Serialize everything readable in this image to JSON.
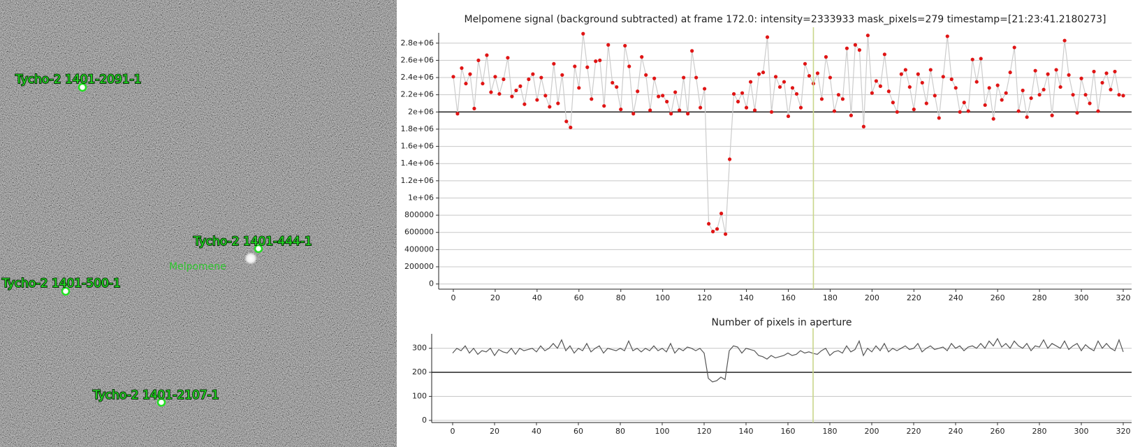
{
  "image_panel": {
    "labels": [
      "Tycho-2 1401-2091-1",
      "Tycho-2 1401-444-1",
      "Melpomene",
      "Tycho-2 1401-500-1",
      "Tycho-2 1401-2107-1"
    ]
  },
  "chart_data": [
    {
      "type": "line",
      "title": "Melpomene signal (background subtracted) at frame 172.0: intensity=2333933 mask_pixels=279 timestamp=[21:23:41.2180273]",
      "color": "#cccccc",
      "marker_color": "#e01515",
      "hline": 2000000,
      "vline": 172,
      "vline_color": "#c9d68a",
      "grid": true,
      "xlim": [
        -7,
        324
      ],
      "xticks": [
        0,
        20,
        40,
        60,
        80,
        100,
        120,
        140,
        160,
        180,
        200,
        220,
        240,
        260,
        280,
        300,
        320
      ],
      "ylim": [
        -60000,
        2920000
      ],
      "yticks": [
        0,
        200000,
        400000,
        600000,
        800000,
        {
          "value": 1000000,
          "label": "1e+06"
        },
        {
          "value": 1200000,
          "label": "1.2e+06"
        },
        {
          "value": 1400000,
          "label": "1.4e+06"
        },
        {
          "value": 1600000,
          "label": "1.6e+06"
        },
        {
          "value": 1800000,
          "label": "1.8e+06"
        },
        {
          "value": 2000000,
          "label": "2e+06"
        },
        {
          "value": 2200000,
          "label": "2.2e+06"
        },
        {
          "value": 2400000,
          "label": "2.4e+06"
        },
        {
          "value": 2600000,
          "label": "2.6e+06"
        },
        {
          "value": 2800000,
          "label": "2.8e+06"
        }
      ],
      "x": [
        0,
        2,
        4,
        6,
        8,
        10,
        12,
        14,
        16,
        18,
        20,
        22,
        24,
        26,
        28,
        30,
        32,
        34,
        36,
        38,
        40,
        42,
        44,
        46,
        48,
        50,
        52,
        54,
        56,
        58,
        60,
        62,
        64,
        66,
        68,
        70,
        72,
        74,
        76,
        78,
        80,
        82,
        84,
        86,
        88,
        90,
        92,
        94,
        96,
        98,
        100,
        102,
        104,
        106,
        108,
        110,
        112,
        114,
        116,
        118,
        120,
        122,
        124,
        126,
        128,
        130,
        132,
        134,
        136,
        138,
        140,
        142,
        144,
        146,
        148,
        150,
        152,
        154,
        156,
        158,
        160,
        162,
        164,
        166,
        168,
        170,
        172,
        174,
        176,
        178,
        180,
        182,
        184,
        186,
        188,
        190,
        192,
        194,
        196,
        198,
        200,
        202,
        204,
        206,
        208,
        210,
        212,
        214,
        216,
        218,
        220,
        222,
        224,
        226,
        228,
        230,
        232,
        234,
        236,
        238,
        240,
        242,
        244,
        246,
        248,
        250,
        252,
        254,
        256,
        258,
        260,
        262,
        264,
        266,
        268,
        270,
        272,
        274,
        276,
        278,
        280,
        282,
        284,
        286,
        288,
        290,
        292,
        294,
        296,
        298,
        300,
        302,
        304,
        306,
        308,
        310,
        312,
        314,
        316,
        318,
        320
      ],
      "values": [
        2410000,
        1980000,
        2510000,
        2330000,
        2440000,
        2040000,
        2600000,
        2330000,
        2660000,
        2230000,
        2410000,
        2210000,
        2380000,
        2630000,
        2180000,
        2250000,
        2300000,
        2090000,
        2380000,
        2440000,
        2140000,
        2400000,
        2190000,
        2060000,
        2560000,
        2100000,
        2430000,
        1890000,
        1820000,
        2530000,
        2280000,
        2910000,
        2520000,
        2150000,
        2590000,
        2600000,
        2070000,
        2780000,
        2340000,
        2290000,
        2030000,
        2770000,
        2530000,
        1980000,
        2240000,
        2640000,
        2430000,
        2020000,
        2390000,
        2180000,
        2190000,
        2120000,
        1980000,
        2230000,
        2020000,
        2400000,
        1980000,
        2710000,
        2400000,
        2050000,
        2270000,
        700000,
        610000,
        640000,
        820000,
        580000,
        1450000,
        2210000,
        2120000,
        2220000,
        2050000,
        2350000,
        2020000,
        2440000,
        2460000,
        2870000,
        2000000,
        2410000,
        2290000,
        2350000,
        1950000,
        2280000,
        2210000,
        2050000,
        2560000,
        2420000,
        2330000,
        2450000,
        2150000,
        2640000,
        2400000,
        2010000,
        2200000,
        2150000,
        2740000,
        1960000,
        2780000,
        2720000,
        1830000,
        2890000,
        2220000,
        2360000,
        2300000,
        2670000,
        2240000,
        2110000,
        2000000,
        2440000,
        2490000,
        2290000,
        2030000,
        2440000,
        2340000,
        2100000,
        2490000,
        2190000,
        1930000,
        2410000,
        2880000,
        2380000,
        2280000,
        2000000,
        2110000,
        2010000,
        2610000,
        2350000,
        2620000,
        2080000,
        2280000,
        1920000,
        2310000,
        2140000,
        2220000,
        2460000,
        2750000,
        2010000,
        2250000,
        1940000,
        2160000,
        2480000,
        2200000,
        2260000,
        2440000,
        1960000,
        2490000,
        2290000,
        2830000,
        2430000,
        2200000,
        1990000,
        2390000,
        2200000,
        2100000,
        2470000,
        2010000,
        2340000,
        2450000,
        2260000,
        2470000,
        2200000,
        2190000
      ]
    },
    {
      "type": "line",
      "title": "Number of pixels in aperture",
      "color": "#555555",
      "hline": 200,
      "vline": 172,
      "vline_color": "#c9d68a",
      "grid": true,
      "xlim": [
        -10,
        324
      ],
      "xticks": [
        0,
        20,
        40,
        60,
        80,
        100,
        120,
        140,
        160,
        180,
        200,
        220,
        240,
        260,
        280,
        300,
        320
      ],
      "ylim": [
        -9,
        360
      ],
      "yticks": [
        0,
        100,
        200,
        300
      ],
      "x": [
        0,
        2,
        4,
        6,
        8,
        10,
        12,
        14,
        16,
        18,
        20,
        22,
        24,
        26,
        28,
        30,
        32,
        34,
        36,
        38,
        40,
        42,
        44,
        46,
        48,
        50,
        52,
        54,
        56,
        58,
        60,
        62,
        64,
        66,
        68,
        70,
        72,
        74,
        76,
        78,
        80,
        82,
        84,
        86,
        88,
        90,
        92,
        94,
        96,
        98,
        100,
        102,
        104,
        106,
        108,
        110,
        112,
        114,
        116,
        118,
        120,
        122,
        124,
        126,
        128,
        130,
        132,
        134,
        136,
        138,
        140,
        142,
        144,
        146,
        148,
        150,
        152,
        154,
        156,
        158,
        160,
        162,
        164,
        166,
        168,
        170,
        172,
        174,
        176,
        178,
        180,
        182,
        184,
        186,
        188,
        190,
        192,
        194,
        196,
        198,
        200,
        202,
        204,
        206,
        208,
        210,
        212,
        214,
        216,
        218,
        220,
        222,
        224,
        226,
        228,
        230,
        232,
        234,
        236,
        238,
        240,
        242,
        244,
        246,
        248,
        250,
        252,
        254,
        256,
        258,
        260,
        262,
        264,
        266,
        268,
        270,
        272,
        274,
        276,
        278,
        280,
        282,
        284,
        286,
        288,
        290,
        292,
        294,
        296,
        298,
        300,
        302,
        304,
        306,
        308,
        310,
        312,
        314,
        316,
        318,
        320
      ],
      "values": [
        280,
        300,
        290,
        310,
        280,
        300,
        275,
        290,
        285,
        300,
        270,
        295,
        285,
        280,
        300,
        275,
        300,
        290,
        295,
        300,
        285,
        310,
        290,
        300,
        320,
        300,
        335,
        290,
        310,
        280,
        300,
        290,
        320,
        285,
        300,
        310,
        280,
        300,
        295,
        290,
        300,
        290,
        330,
        290,
        300,
        285,
        300,
        290,
        310,
        290,
        300,
        285,
        320,
        280,
        300,
        290,
        305,
        300,
        290,
        300,
        280,
        175,
        160,
        165,
        180,
        170,
        290,
        310,
        305,
        280,
        300,
        295,
        290,
        270,
        265,
        255,
        270,
        260,
        265,
        270,
        280,
        270,
        275,
        290,
        280,
        285,
        279,
        275,
        290,
        300,
        270,
        285,
        290,
        280,
        310,
        285,
        295,
        330,
        270,
        300,
        285,
        310,
        290,
        320,
        285,
        300,
        290,
        300,
        310,
        295,
        300,
        320,
        285,
        300,
        310,
        295,
        300,
        305,
        290,
        320,
        300,
        310,
        290,
        305,
        310,
        300,
        320,
        300,
        330,
        310,
        340,
        305,
        320,
        300,
        330,
        310,
        300,
        320,
        290,
        310,
        305,
        335,
        300,
        320,
        310,
        300,
        330,
        295,
        310,
        320,
        290,
        315,
        300,
        290,
        330,
        300,
        320,
        300,
        290,
        335,
        285
      ]
    }
  ]
}
